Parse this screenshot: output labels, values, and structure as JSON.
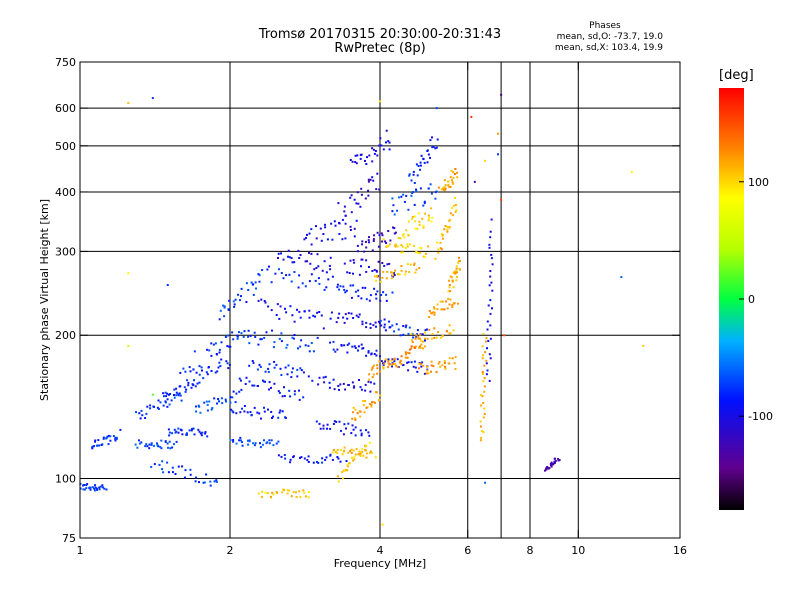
{
  "chart_data": {
    "type": "scatter",
    "title": "Tromsø 20170315 20:30:00-20:31:43",
    "subtitle": "RwPretec (8p)",
    "xlabel": "Frequency [MHz]",
    "ylabel": "Stationary phase Virtual Height [km]",
    "x_scale": "log",
    "y_scale": "log",
    "xlim": [
      1,
      16
    ],
    "ylim": [
      75,
      750
    ],
    "x_ticks": [
      "1",
      "2",
      "4",
      "6",
      "8",
      "10",
      "16"
    ],
    "x_tick_values": [
      1,
      2,
      4,
      6,
      8,
      10,
      16
    ],
    "y_ticks": [
      "75",
      "100",
      "200",
      "300",
      "400",
      "500",
      "600",
      "750"
    ],
    "y_tick_values": [
      75,
      100,
      200,
      300,
      400,
      500,
      600,
      750
    ],
    "x_grid_values": [
      1,
      2,
      4,
      6,
      7,
      8,
      10,
      16
    ],
    "y_grid_values": [
      100,
      200,
      300,
      400,
      500,
      600
    ],
    "grid": true,
    "phase_info": {
      "header": "Phases",
      "line_o": "mean, sd,O: -73.7, 19.0",
      "line_x": "mean, sd,X: 103.4, 19.9"
    },
    "colorbar": {
      "unit": "[deg]",
      "range": [
        -180,
        180
      ],
      "ticks": [
        "100",
        "0",
        "-100"
      ],
      "tick_values": [
        100,
        0,
        -100
      ],
      "colormap": "rainbow (black-purple-blue-cyan-green-yellow-orange-red)"
    },
    "traces": [
      {
        "x": [
          1.0,
          1.12
        ],
        "y": [
          96,
          96
        ],
        "phase": -75,
        "spread": 0.02
      },
      {
        "x": [
          1.05,
          1.2
        ],
        "y": [
          115,
          125
        ],
        "phase": -78,
        "spread": 0.03
      },
      {
        "x": [
          1.3,
          1.55
        ],
        "y": [
          118,
          118
        ],
        "phase": -72,
        "spread": 0.02
      },
      {
        "x": [
          1.3,
          1.6
        ],
        "y": [
          135,
          150
        ],
        "phase": -78,
        "spread": 0.03
      },
      {
        "x": [
          1.4,
          1.9
        ],
        "y": [
          108,
          98
        ],
        "phase": -75,
        "spread": 0.03
      },
      {
        "x": [
          1.5,
          1.8
        ],
        "y": [
          125,
          125
        ],
        "phase": -80,
        "spread": 0.02
      },
      {
        "x": [
          1.45,
          1.75
        ],
        "y": [
          148,
          160
        ],
        "phase": -82,
        "spread": 0.02
      },
      {
        "x": [
          1.6,
          2.0
        ],
        "y": [
          165,
          175
        ],
        "phase": -85,
        "spread": 0.03
      },
      {
        "x": [
          1.7,
          2.1
        ],
        "y": [
          140,
          150
        ],
        "phase": -70,
        "spread": 0.03
      },
      {
        "x": [
          1.8,
          2.2
        ],
        "y": [
          185,
          205
        ],
        "phase": -78,
        "spread": 0.04
      },
      {
        "x": [
          1.9,
          2.3
        ],
        "y": [
          220,
          260
        ],
        "phase": -72,
        "spread": 0.04
      },
      {
        "x": [
          2.0,
          2.5
        ],
        "y": [
          120,
          118
        ],
        "phase": -70,
        "spread": 0.02
      },
      {
        "x": [
          2.0,
          2.6
        ],
        "y": [
          140,
          135
        ],
        "phase": -85,
        "spread": 0.03
      },
      {
        "x": [
          2.1,
          2.8
        ],
        "y": [
          160,
          150
        ],
        "phase": -90,
        "spread": 0.03
      },
      {
        "x": [
          2.2,
          2.9
        ],
        "y": [
          175,
          165
        ],
        "phase": -80,
        "spread": 0.03
      },
      {
        "x": [
          2.2,
          3.0
        ],
        "y": [
          200,
          190
        ],
        "phase": -75,
        "spread": 0.04
      },
      {
        "x": [
          2.3,
          3.1
        ],
        "y": [
          230,
          215
        ],
        "phase": -95,
        "spread": 0.04
      },
      {
        "x": [
          2.3,
          3.3
        ],
        "y": [
          270,
          255
        ],
        "phase": -80,
        "spread": 0.04
      },
      {
        "x": [
          2.5,
          3.2
        ],
        "y": [
          300,
          280
        ],
        "phase": -100,
        "spread": 0.04
      },
      {
        "x": [
          2.8,
          3.6
        ],
        "y": [
          320,
          340
        ],
        "phase": -95,
        "spread": 0.05
      },
      {
        "x": [
          2.5,
          3.4
        ],
        "y": [
          110,
          110
        ],
        "phase": -88,
        "spread": 0.02
      },
      {
        "x": [
          3.0,
          3.8
        ],
        "y": [
          130,
          125
        ],
        "phase": -92,
        "spread": 0.03
      },
      {
        "x": [
          3.0,
          3.9
        ],
        "y": [
          160,
          155
        ],
        "phase": -98,
        "spread": 0.03
      },
      {
        "x": [
          3.2,
          4.0
        ],
        "y": [
          190,
          185
        ],
        "phase": -90,
        "spread": 0.03
      },
      {
        "x": [
          3.2,
          4.1
        ],
        "y": [
          220,
          210
        ],
        "phase": -100,
        "spread": 0.03
      },
      {
        "x": [
          3.3,
          4.2
        ],
        "y": [
          250,
          240
        ],
        "phase": -88,
        "spread": 0.03
      },
      {
        "x": [
          3.4,
          4.3
        ],
        "y": [
          280,
          275
        ],
        "phase": -105,
        "spread": 0.04
      },
      {
        "x": [
          3.3,
          4.0
        ],
        "y": [
          360,
          420
        ],
        "phase": -110,
        "spread": 0.05
      },
      {
        "x": [
          3.5,
          4.2
        ],
        "y": [
          450,
          520
        ],
        "phase": -100,
        "spread": 0.05
      },
      {
        "x": [
          3.6,
          4.3
        ],
        "y": [
          300,
          330
        ],
        "phase": -115,
        "spread": 0.04
      },
      {
        "x": [
          4.0,
          5.0
        ],
        "y": [
          175,
          170
        ],
        "phase": -95,
        "spread": 0.03
      },
      {
        "x": [
          4.0,
          5.0
        ],
        "y": [
          210,
          200
        ],
        "phase": -80,
        "spread": 0.03
      },
      {
        "x": [
          4.2,
          5.2
        ],
        "y": [
          370,
          400
        ],
        "phase": -70,
        "spread": 0.05
      },
      {
        "x": [
          4.6,
          5.2
        ],
        "y": [
          420,
          520
        ],
        "phase": -85,
        "spread": 0.04
      },
      {
        "x": [
          2.3,
          2.9
        ],
        "y": [
          93,
          93
        ],
        "phase": 105,
        "spread": 0.02
      },
      {
        "x": [
          3.2,
          3.9
        ],
        "y": [
          115,
          112
        ],
        "phase": 110,
        "spread": 0.02
      },
      {
        "x": [
          3.5,
          4.0
        ],
        "y": [
          135,
          150
        ],
        "phase": 120,
        "spread": 0.03
      },
      {
        "x": [
          3.8,
          4.3
        ],
        "y": [
          165,
          180
        ],
        "phase": 115,
        "spread": 0.03
      },
      {
        "x": [
          3.9,
          4.8
        ],
        "y": [
          260,
          280
        ],
        "phase": 110,
        "spread": 0.03
      },
      {
        "x": [
          4.1,
          5.0
        ],
        "y": [
          310,
          300
        ],
        "phase": 100,
        "spread": 0.03
      },
      {
        "x": [
          4.3,
          4.9
        ],
        "y": [
          175,
          195
        ],
        "phase": 125,
        "spread": 0.03
      },
      {
        "x": [
          4.6,
          5.6
        ],
        "y": [
          195,
          205
        ],
        "phase": 115,
        "spread": 0.03
      },
      {
        "x": [
          4.8,
          5.7
        ],
        "y": [
          170,
          175
        ],
        "phase": 120,
        "spread": 0.03
      },
      {
        "x": [
          5.0,
          5.7
        ],
        "y": [
          220,
          240
        ],
        "phase": 118,
        "spread": 0.03
      },
      {
        "x": [
          5.2,
          5.7
        ],
        "y": [
          300,
          380
        ],
        "phase": 110,
        "spread": 0.04
      },
      {
        "x": [
          5.3,
          5.7
        ],
        "y": [
          400,
          440
        ],
        "phase": 118,
        "spread": 0.03
      },
      {
        "x": [
          4.4,
          5.1
        ],
        "y": [
          330,
          360
        ],
        "phase": 100,
        "spread": 0.04
      },
      {
        "x": [
          3.3,
          3.8
        ],
        "y": [
          100,
          120
        ],
        "phase": 105,
        "spread": 0.02
      },
      {
        "x": [
          5.5,
          5.8
        ],
        "y": [
          250,
          290
        ],
        "phase": 112,
        "spread": 0.03
      },
      {
        "x": [
          6.4,
          6.5
        ],
        "y": [
          120,
          200
        ],
        "phase": 112,
        "spread": 0.01
      },
      {
        "x": [
          6.6,
          6.7
        ],
        "y": [
          160,
          330
        ],
        "phase": -95,
        "spread": 0.01
      },
      {
        "x": [
          8.6,
          9.1
        ],
        "y": [
          104,
          110
        ],
        "phase": -130,
        "spread": 0.01
      }
    ],
    "sparse_points": [
      {
        "x": 1.25,
        "y": 615,
        "phase": 110
      },
      {
        "x": 1.4,
        "y": 630,
        "phase": -75
      },
      {
        "x": 1.25,
        "y": 270,
        "phase": 90
      },
      {
        "x": 1.25,
        "y": 190,
        "phase": 60
      },
      {
        "x": 1.4,
        "y": 150,
        "phase": 20
      },
      {
        "x": 1.5,
        "y": 255,
        "phase": -75
      },
      {
        "x": 1.7,
        "y": 185,
        "phase": -75
      },
      {
        "x": 4.0,
        "y": 620,
        "phase": 100
      },
      {
        "x": 4.05,
        "y": 80,
        "phase": 95
      },
      {
        "x": 5.2,
        "y": 600,
        "phase": -70
      },
      {
        "x": 6.1,
        "y": 575,
        "phase": 160
      },
      {
        "x": 6.2,
        "y": 420,
        "phase": -130
      },
      {
        "x": 6.5,
        "y": 465,
        "phase": 100
      },
      {
        "x": 6.5,
        "y": 98,
        "phase": -60
      },
      {
        "x": 6.7,
        "y": 350,
        "phase": -100
      },
      {
        "x": 6.9,
        "y": 480,
        "phase": -75
      },
      {
        "x": 6.9,
        "y": 530,
        "phase": 120
      },
      {
        "x": 7.0,
        "y": 640,
        "phase": -150
      },
      {
        "x": 7.0,
        "y": 385,
        "phase": 155
      },
      {
        "x": 7.1,
        "y": 200,
        "phase": 150
      },
      {
        "x": 12.8,
        "y": 440,
        "phase": 80
      },
      {
        "x": 12.2,
        "y": 265,
        "phase": -60
      },
      {
        "x": 13.5,
        "y": 190,
        "phase": 105
      }
    ]
  }
}
